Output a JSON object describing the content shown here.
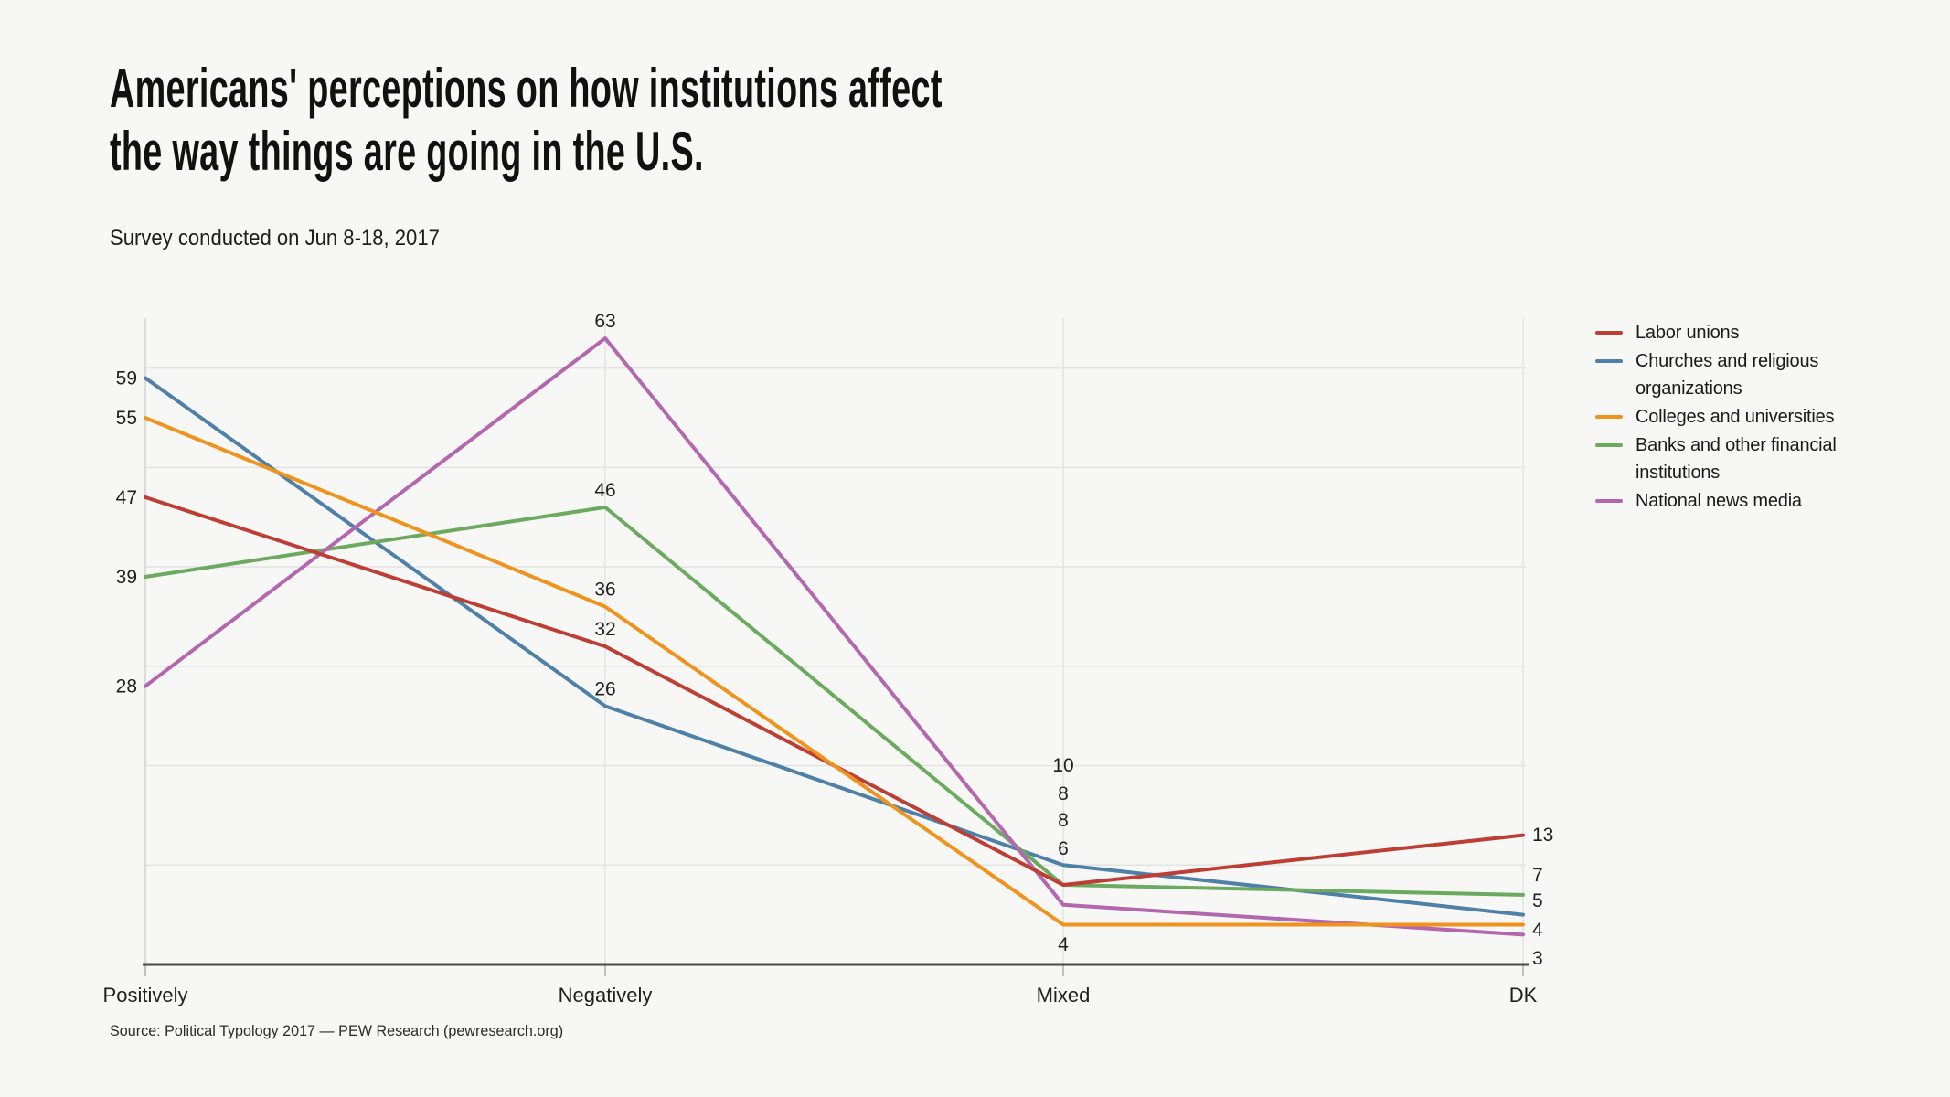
{
  "page": {
    "background": "#f7f7f5",
    "text_color": "#1b1b1b",
    "gridline_color": "#e3e3e1",
    "axis_color": "#4a4a48"
  },
  "header": {
    "title_lines": [
      "Americans' perceptions on how institutions affect",
      "the way things are going in the U.S."
    ],
    "subtitle": "Survey conducted on Jun 8-18, 2017"
  },
  "source": "Source: Political Typology 2017 — PEW Research (pewresearch.org)",
  "chart_data": {
    "type": "line",
    "categories": [
      "Positively",
      "Negatively",
      "Mixed",
      "DK"
    ],
    "series": [
      {
        "name": "Labor unions",
        "color": "#bd3e35",
        "values": [
          47,
          32,
          8,
          13
        ]
      },
      {
        "name": "Churches and religious organizations",
        "color": "#4f80a7",
        "values": [
          59,
          26,
          10,
          5
        ]
      },
      {
        "name": "Colleges and universities",
        "color": "#ef931e",
        "values": [
          55,
          36,
          4,
          4
        ]
      },
      {
        "name": "Banks and other financial institutions",
        "color": "#6caa60",
        "values": [
          39,
          46,
          8,
          7
        ]
      },
      {
        "name": "National news media",
        "color": "#b267af",
        "values": [
          28,
          63,
          6,
          3
        ]
      }
    ],
    "ylim": [
      0,
      65
    ],
    "grid": "horizontal lines every 10 units; vertical line at each category",
    "legend_position": "right",
    "point_labels": true,
    "xlabel": "",
    "ylabel": ""
  }
}
